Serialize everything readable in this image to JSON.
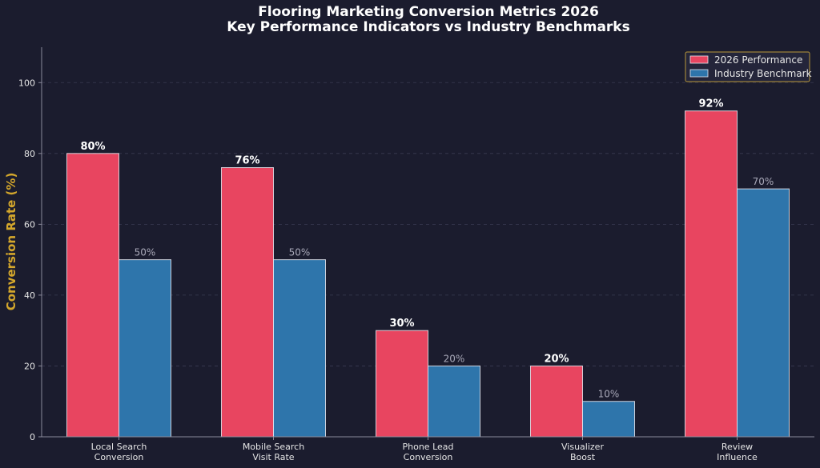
{
  "chart_data": {
    "type": "bar",
    "title_lines": [
      "Flooring Marketing Conversion Metrics 2026",
      "Key Performance Indicators vs Industry Benchmarks"
    ],
    "ylabel": "Conversion Rate (%)",
    "xlabel": "",
    "ylim": [
      0,
      110
    ],
    "yticks": [
      0,
      20,
      40,
      60,
      80,
      100
    ],
    "grid": true,
    "legend_position": "top-right",
    "categories": [
      [
        "Local Search",
        "Conversion"
      ],
      [
        "Mobile Search",
        "Visit Rate"
      ],
      [
        "Phone Lead",
        "Conversion"
      ],
      [
        "Visualizer",
        "Boost"
      ],
      [
        "Review",
        "Influence"
      ]
    ],
    "series": [
      {
        "name": "2026 Performance",
        "color": "#e84560",
        "values": [
          80,
          76,
          30,
          20,
          92
        ],
        "labels": [
          "80%",
          "76%",
          "30%",
          "20%",
          "92%"
        ]
      },
      {
        "name": "Industry Benchmark",
        "color": "#2e75ab",
        "values": [
          50,
          50,
          20,
          10,
          70
        ],
        "labels": [
          "50%",
          "50%",
          "20%",
          "10%",
          "70%"
        ]
      }
    ]
  },
  "colors": {
    "background": "#1b1c2e",
    "axis": "#8a8a9a",
    "grid": "#3a3b52",
    "ylabel": "#d4a72c"
  }
}
